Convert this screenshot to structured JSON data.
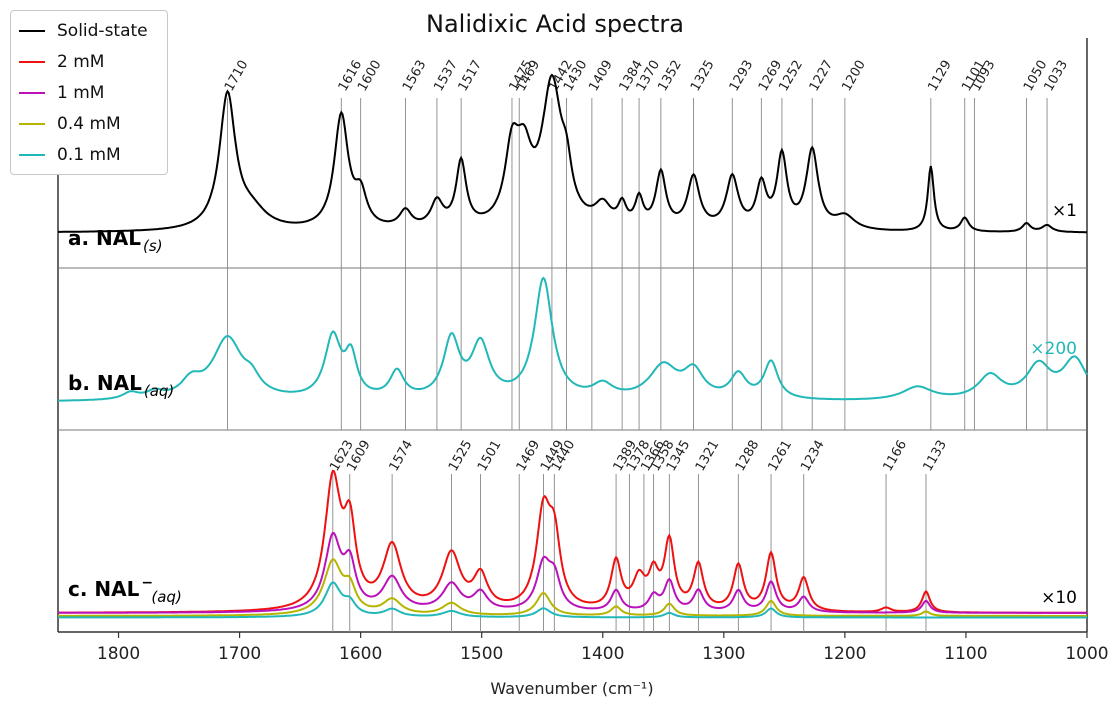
{
  "chart_data": {
    "type": "line",
    "title": "Nalidixic Acid spectra",
    "xlabel": "Wavenumber (cm⁻¹)",
    "xlim": [
      1850,
      1000
    ],
    "x_ticks": [
      1800,
      1700,
      1600,
      1500,
      1400,
      1300,
      1200,
      1100,
      1000
    ],
    "legend": {
      "placement": "top-left",
      "entries": [
        {
          "name": "Solid-state",
          "color": "#000000"
        },
        {
          "name": "2 mM",
          "color": "#ee1111"
        },
        {
          "name": "1 mM",
          "color": "#bb11bb"
        },
        {
          "name": "0.4 mM",
          "color": "#b5b500"
        },
        {
          "name": "0.1 mM",
          "color": "#22b8b8"
        }
      ]
    },
    "panels": [
      {
        "id": "a",
        "label_main": "a.  NAL",
        "label_sub": "(s)",
        "scale": "×1",
        "scale_color": "#000000",
        "peak_labels": [
          "1710",
          "1616",
          "1600",
          "1563",
          "1537",
          "1517",
          "1475",
          "1469",
          "1442",
          "1430",
          "1409",
          "1384",
          "1370",
          "1352",
          "1325",
          "1293",
          "1269",
          "1252",
          "1227",
          "1200",
          "1129",
          "1101",
          "1093",
          "1050",
          "1033"
        ],
        "series": [
          {
            "name": "Solid-state",
            "color": "#000000",
            "baseline": 0.1,
            "peaks": [
              [
                1710,
                0.78,
                8
              ],
              [
                1690,
                0.1,
                15
              ],
              [
                1616,
                0.66,
                7
              ],
              [
                1600,
                0.18,
                6
              ],
              [
                1563,
                0.1,
                6
              ],
              [
                1537,
                0.15,
                6
              ],
              [
                1517,
                0.38,
                5
              ],
              [
                1475,
                0.4,
                7
              ],
              [
                1465,
                0.35,
                8
              ],
              [
                1442,
                0.82,
                10
              ],
              [
                1430,
                0.2,
                5
              ],
              [
                1400,
                0.12,
                8
              ],
              [
                1384,
                0.12,
                4
              ],
              [
                1370,
                0.16,
                4
              ],
              [
                1352,
                0.32,
                5
              ],
              [
                1325,
                0.3,
                6
              ],
              [
                1293,
                0.3,
                6
              ],
              [
                1269,
                0.25,
                5
              ],
              [
                1252,
                0.42,
                5
              ],
              [
                1227,
                0.46,
                6
              ],
              [
                1200,
                0.08,
                10
              ],
              [
                1129,
                0.38,
                3
              ],
              [
                1101,
                0.08,
                4
              ],
              [
                1050,
                0.05,
                4
              ],
              [
                1033,
                0.04,
                5
              ]
            ]
          }
        ]
      },
      {
        "id": "b",
        "label_main": "b.  NAL",
        "label_sub": "(aq)",
        "scale": "×200",
        "scale_color": "#22b8b8",
        "series": [
          {
            "name": "0.1 mM",
            "color": "#22b8b8",
            "baseline": 0.12,
            "peaks": [
              [
                1790,
                0.05,
                8
              ],
              [
                1770,
                0.05,
                8
              ],
              [
                1740,
                0.12,
                10
              ],
              [
                1710,
                0.46,
                15
              ],
              [
                1690,
                0.1,
                8
              ],
              [
                1623,
                0.46,
                8
              ],
              [
                1608,
                0.3,
                6
              ],
              [
                1570,
                0.2,
                7
              ],
              [
                1525,
                0.44,
                8
              ],
              [
                1501,
                0.4,
                9
              ],
              [
                1449,
                0.9,
                9
              ],
              [
                1400,
                0.1,
                10
              ],
              [
                1350,
                0.25,
                14
              ],
              [
                1325,
                0.2,
                10
              ],
              [
                1288,
                0.18,
                8
              ],
              [
                1261,
                0.28,
                7
              ],
              [
                1140,
                0.1,
                15
              ],
              [
                1080,
                0.18,
                12
              ],
              [
                1040,
                0.25,
                12
              ],
              [
                1010,
                0.3,
                12
              ]
            ]
          }
        ]
      },
      {
        "id": "c",
        "label_main": "c.  NAL",
        "label_sup": "−",
        "label_sub": "(aq)",
        "scale": "×10",
        "scale_color": "#000000",
        "peak_labels": [
          "1623",
          "1609",
          "1574",
          "1525",
          "1501",
          "1469",
          "1449",
          "1440",
          "1389",
          "1378",
          "1366",
          "1358",
          "1345",
          "1321",
          "1288",
          "1261",
          "1234",
          "1166",
          "1133"
        ],
        "series": [
          {
            "name": "2 mM",
            "color": "#ee1111",
            "baseline": 0.06,
            "peaks": [
              [
                1623,
                0.85,
                8
              ],
              [
                1609,
                0.5,
                6
              ],
              [
                1574,
                0.42,
                9
              ],
              [
                1525,
                0.37,
                9
              ],
              [
                1501,
                0.22,
                7
              ],
              [
                1449,
                0.62,
                7
              ],
              [
                1440,
                0.42,
                6
              ],
              [
                1389,
                0.32,
                5
              ],
              [
                1370,
                0.2,
                6
              ],
              [
                1358,
                0.22,
                5
              ],
              [
                1345,
                0.45,
                5
              ],
              [
                1321,
                0.3,
                5
              ],
              [
                1288,
                0.3,
                5
              ],
              [
                1261,
                0.38,
                5
              ],
              [
                1234,
                0.22,
                5
              ],
              [
                1166,
                0.03,
                5
              ],
              [
                1133,
                0.14,
                4
              ]
            ]
          },
          {
            "name": "1 mM",
            "color": "#bb11bb",
            "baseline": 0.06,
            "peaks": [
              [
                1623,
                0.48,
                8
              ],
              [
                1609,
                0.28,
                6
              ],
              [
                1574,
                0.22,
                9
              ],
              [
                1525,
                0.18,
                9
              ],
              [
                1501,
                0.12,
                7
              ],
              [
                1449,
                0.3,
                7
              ],
              [
                1440,
                0.2,
                6
              ],
              [
                1389,
                0.14,
                5
              ],
              [
                1358,
                0.1,
                5
              ],
              [
                1345,
                0.2,
                5
              ],
              [
                1321,
                0.14,
                5
              ],
              [
                1288,
                0.14,
                5
              ],
              [
                1261,
                0.2,
                5
              ],
              [
                1234,
                0.1,
                5
              ],
              [
                1133,
                0.08,
                4
              ]
            ]
          },
          {
            "name": "0.4 mM",
            "color": "#b5b500",
            "baseline": 0.04,
            "peaks": [
              [
                1623,
                0.35,
                9
              ],
              [
                1609,
                0.15,
                6
              ],
              [
                1574,
                0.1,
                9
              ],
              [
                1525,
                0.08,
                9
              ],
              [
                1449,
                0.15,
                7
              ],
              [
                1389,
                0.06,
                5
              ],
              [
                1345,
                0.08,
                5
              ],
              [
                1261,
                0.1,
                5
              ],
              [
                1133,
                0.03,
                4
              ]
            ]
          },
          {
            "name": "0.1 mM",
            "color": "#22b8b8",
            "baseline": 0.03,
            "peaks": [
              [
                1623,
                0.22,
                8
              ],
              [
                1609,
                0.08,
                6
              ],
              [
                1574,
                0.05,
                8
              ],
              [
                1525,
                0.04,
                9
              ],
              [
                1449,
                0.06,
                7
              ],
              [
                1345,
                0.03,
                5
              ],
              [
                1261,
                0.06,
                5
              ]
            ]
          }
        ]
      }
    ]
  }
}
